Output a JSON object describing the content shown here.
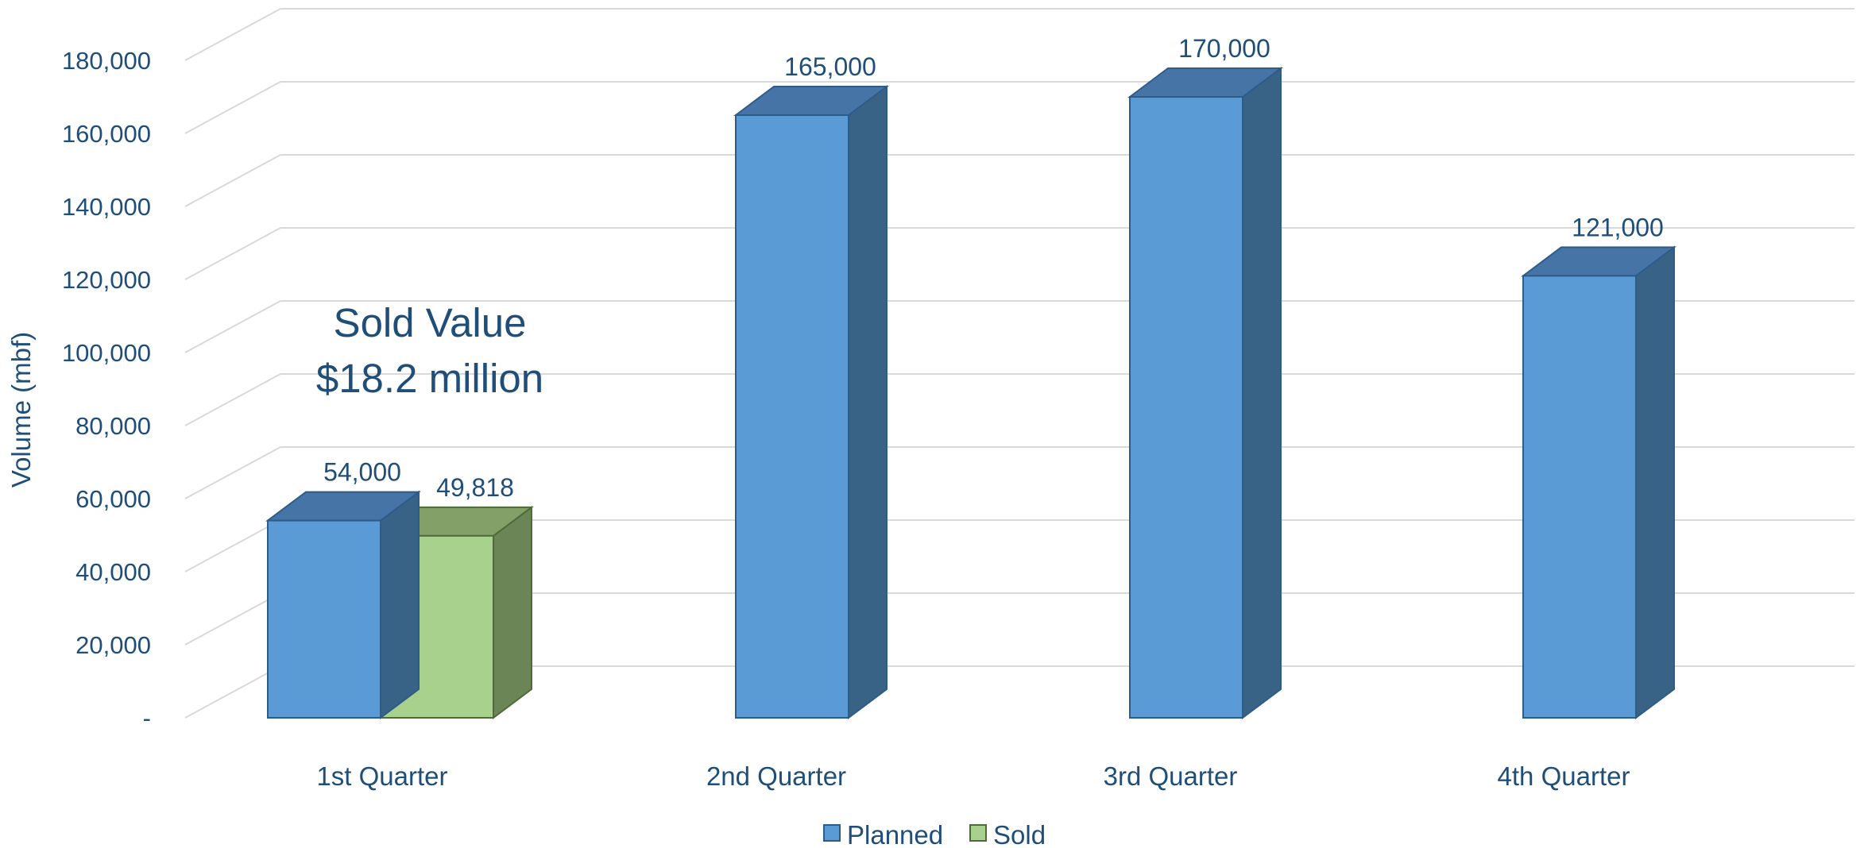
{
  "chart_data": {
    "type": "bar",
    "title": "",
    "xlabel": "",
    "ylabel": "Volume (mbf)",
    "ylim": [
      0,
      200000
    ],
    "yticks": [
      0,
      20000,
      40000,
      60000,
      80000,
      100000,
      120000,
      140000,
      160000,
      180000
    ],
    "ytick_labels": [
      "-",
      "20,000",
      "40,000",
      "60,000",
      "80,000",
      "100,000",
      "120,000",
      "140,000",
      "160,000",
      "180,000"
    ],
    "categories": [
      "1st Quarter",
      "2nd Quarter",
      "3rd Quarter",
      "4th Quarter"
    ],
    "series": [
      {
        "name": "Planned",
        "values": [
          54000,
          165000,
          170000,
          121000
        ],
        "labels": [
          "54,000",
          "165,000",
          "170,000",
          "121,000"
        ],
        "color": "#5B9BD5",
        "side_color": "#386387",
        "top_color": "#4674A6",
        "stroke": "#2E5C8A"
      },
      {
        "name": "Sold",
        "values": [
          49818,
          null,
          null,
          null
        ],
        "labels": [
          "49,818",
          null,
          null,
          null
        ],
        "color": "#A9D18E",
        "side_color": "#6B8556",
        "top_color": "#83A068",
        "stroke": "#4F6B38"
      }
    ],
    "annotation": {
      "lines": [
        "Sold Value",
        "$18.2 million"
      ]
    },
    "legend": {
      "position": "bottom",
      "items": [
        "Planned",
        "Sold"
      ]
    },
    "grid": true,
    "style": "3d-column"
  }
}
